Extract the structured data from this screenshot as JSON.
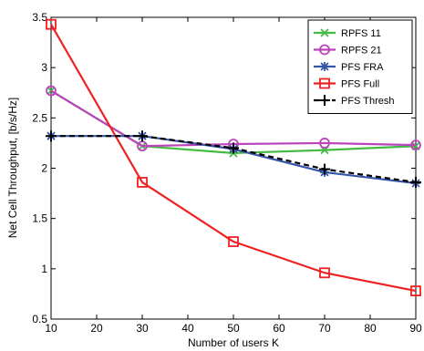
{
  "chart_data": {
    "type": "line",
    "title": "",
    "xlabel": "Number of users K",
    "ylabel": "Net Cell Throughput, [b/s/Hz]",
    "xlim": [
      10,
      90
    ],
    "ylim": [
      0.5,
      3.5
    ],
    "xticks": [
      10,
      20,
      30,
      40,
      50,
      60,
      70,
      80,
      90
    ],
    "yticks": [
      0.5,
      1,
      1.5,
      2,
      2.5,
      3,
      3.5
    ],
    "grid": false,
    "legend_position": "top-right",
    "x": [
      10,
      30,
      50,
      70,
      90
    ],
    "series": [
      {
        "name": "RPFS 11",
        "values": [
          2.77,
          2.22,
          2.15,
          2.18,
          2.22
        ],
        "color": "#44bb44",
        "marker": "x",
        "dash": ""
      },
      {
        "name": "RPFS 21",
        "values": [
          2.77,
          2.22,
          2.24,
          2.25,
          2.23
        ],
        "color": "#bb44bb",
        "marker": "circle",
        "dash": ""
      },
      {
        "name": "PFS FRA",
        "values": [
          2.32,
          2.32,
          2.19,
          1.96,
          1.85
        ],
        "color": "#3355aa",
        "marker": "asterisk",
        "dash": ""
      },
      {
        "name": "PFS Full",
        "values": [
          3.43,
          1.86,
          1.27,
          0.96,
          0.78
        ],
        "color": "#ee2222",
        "marker": "square",
        "dash": ""
      },
      {
        "name": "PFS Thresh",
        "values": [
          2.32,
          2.32,
          2.2,
          1.99,
          1.86
        ],
        "color": "#000000",
        "marker": "plus",
        "dash": "6,4"
      }
    ]
  }
}
